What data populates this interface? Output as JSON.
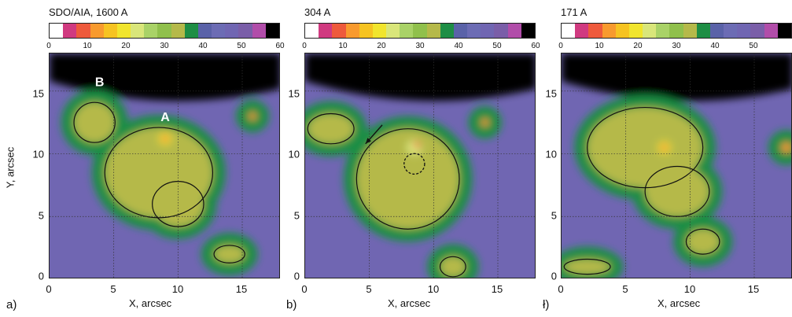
{
  "chart_data": {
    "type": "heatmap",
    "colorbar": {
      "ticks": [
        "0",
        "10",
        "20",
        "30",
        "40",
        "50",
        "60"
      ],
      "range": [
        0,
        60
      ],
      "colors": [
        "#ffffff",
        "#d03a80",
        "#ee5a3c",
        "#f89a2e",
        "#f6c321",
        "#f1e52d",
        "#d9e67a",
        "#a9d267",
        "#90c04c",
        "#b5b94a",
        "#1e8e45",
        "#5a62a8",
        "#6c6cb4",
        "#7066b2",
        "#7a5ea8",
        "#b14da9",
        "#000000"
      ]
    },
    "ylabel": "Y, arcsec",
    "xlim": [
      0,
      18
    ],
    "ylim": [
      0,
      18
    ],
    "x_ticks": [
      "0",
      "5",
      "10",
      "15"
    ],
    "y_ticks": [
      "0",
      "5",
      "10",
      "15"
    ],
    "panels": [
      {
        "title": "SDO/AIA, 1600 A",
        "panel_label": "a)",
        "xlabel": "X, arcsec",
        "annotations": [
          {
            "text": "A",
            "x": 9.0,
            "y": 12.6
          },
          {
            "text": "B",
            "x": 3.9,
            "y": 15.4
          }
        ],
        "blobs": [
          {
            "x": 8.5,
            "y": 8.5,
            "rx": 4.2,
            "ry": 3.6,
            "level": 35
          },
          {
            "x": 10.0,
            "y": 6.0,
            "rx": 2.0,
            "ry": 1.8,
            "level": 33
          },
          {
            "x": 3.5,
            "y": 12.5,
            "rx": 1.6,
            "ry": 1.6,
            "level": 33
          },
          {
            "x": 14.0,
            "y": 2.0,
            "rx": 1.2,
            "ry": 0.7,
            "level": 33
          },
          {
            "x": 9.0,
            "y": 11.2,
            "rx": 0.5,
            "ry": 0.5,
            "level": 18
          },
          {
            "x": 9.0,
            "y": 11.2,
            "rx": 0.25,
            "ry": 0.25,
            "level": 8
          },
          {
            "x": 15.8,
            "y": 13.0,
            "rx": 0.3,
            "ry": 0.3,
            "level": 14
          }
        ]
      },
      {
        "title": "304 A",
        "panel_label": "b)",
        "xlabel": "X, arcsec",
        "annotations": [],
        "marker_circle": {
          "x": 8.5,
          "y": 9.2,
          "r": 0.8
        },
        "arrow": {
          "from": [
            6.0,
            12.3
          ],
          "to": [
            4.7,
            10.8
          ]
        },
        "blobs": [
          {
            "x": 8.0,
            "y": 8.0,
            "rx": 4.0,
            "ry": 4.0,
            "level": 35
          },
          {
            "x": 2.0,
            "y": 12.0,
            "rx": 1.8,
            "ry": 1.2,
            "level": 33
          },
          {
            "x": 11.5,
            "y": 1.0,
            "rx": 1.0,
            "ry": 0.8,
            "level": 33
          },
          {
            "x": 8.5,
            "y": 10.5,
            "rx": 0.6,
            "ry": 0.6,
            "level": 22
          },
          {
            "x": 8.7,
            "y": 10.7,
            "rx": 0.25,
            "ry": 0.25,
            "level": 8
          },
          {
            "x": 14.0,
            "y": 12.5,
            "rx": 0.3,
            "ry": 0.3,
            "level": 14
          }
        ]
      },
      {
        "title": "171 A",
        "panel_label": "ł)",
        "xlabel": "X, arcsec",
        "annotations": [],
        "blobs": [
          {
            "x": 6.5,
            "y": 10.5,
            "rx": 4.5,
            "ry": 3.2,
            "level": 35
          },
          {
            "x": 9.0,
            "y": 7.0,
            "rx": 2.5,
            "ry": 2.0,
            "level": 33
          },
          {
            "x": 11.0,
            "y": 3.0,
            "rx": 1.3,
            "ry": 1.0,
            "level": 33
          },
          {
            "x": 2.0,
            "y": 1.0,
            "rx": 1.8,
            "ry": 0.6,
            "level": 33
          },
          {
            "x": 8.0,
            "y": 10.5,
            "rx": 0.5,
            "ry": 0.5,
            "level": 20
          },
          {
            "x": 8.0,
            "y": 10.5,
            "rx": 0.25,
            "ry": 0.25,
            "level": 8
          },
          {
            "x": 17.5,
            "y": 10.5,
            "rx": 0.4,
            "ry": 0.4,
            "level": 14
          }
        ]
      }
    ]
  }
}
